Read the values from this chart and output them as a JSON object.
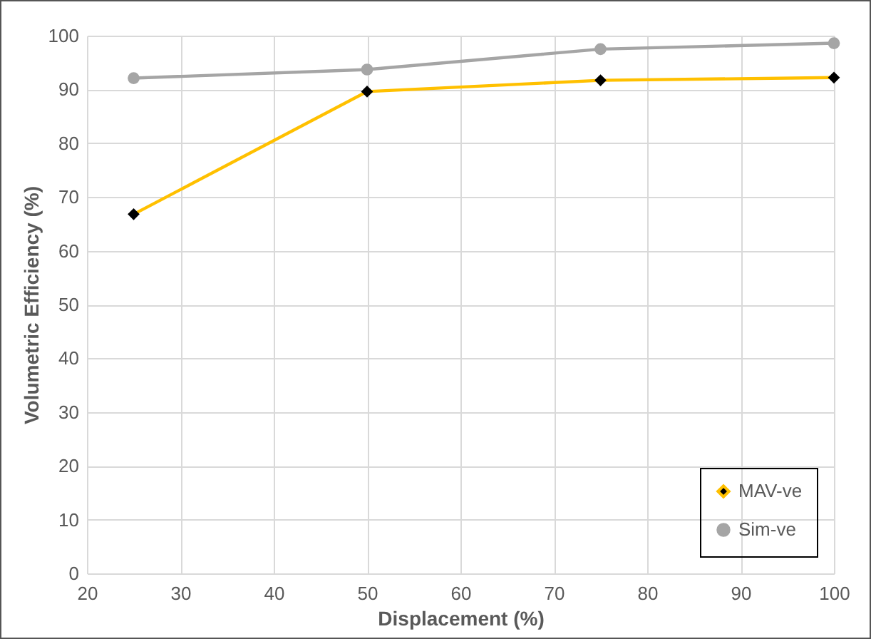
{
  "chart_data": {
    "type": "line",
    "xlabel": "Displacement (%)",
    "ylabel": "Volumetric Efficiency (%)",
    "x": [
      25,
      50,
      75,
      100
    ],
    "series": [
      {
        "name": "MAV-ve",
        "color": "#ffc000",
        "marker": "diamond",
        "values": [
          66.8,
          89.6,
          91.7,
          92.2
        ]
      },
      {
        "name": "Sim-ve",
        "color": "#a5a5a5",
        "marker": "circle",
        "values": [
          92.1,
          93.7,
          97.5,
          98.6
        ]
      }
    ],
    "xlim": [
      20,
      100
    ],
    "xticks": [
      20,
      30,
      40,
      50,
      60,
      70,
      80,
      90,
      100
    ],
    "ylim": [
      0,
      100
    ],
    "yticks": [
      0,
      10,
      20,
      30,
      40,
      50,
      60,
      70,
      80,
      90,
      100
    ],
    "grid": true,
    "legend": "bottom right",
    "line_style": "solid"
  }
}
